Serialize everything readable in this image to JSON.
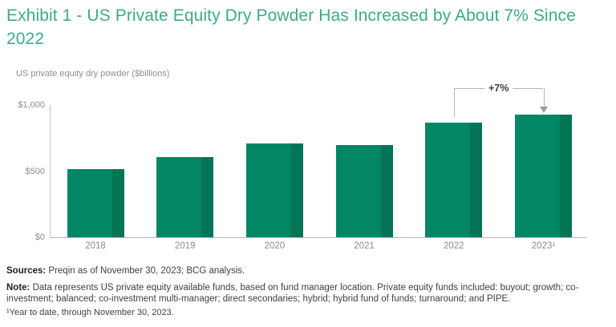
{
  "title": "Exhibit 1 - US Private Equity Dry Powder Has Increased by About 7% Since 2022",
  "subtitle": "US private equity dry powder ($billions)",
  "colors": {
    "title_green": "#3BAA8E",
    "bar_green": "#028663",
    "bar_shade_green": "#047457",
    "axis_gray": "#b8b8b8",
    "label_gray": "#8c8c8c"
  },
  "chart_data": {
    "type": "bar",
    "categories": [
      "2018",
      "2019",
      "2020",
      "2021",
      "2022",
      "2023¹"
    ],
    "values": [
      515,
      605,
      710,
      700,
      865,
      925
    ],
    "title": "Exhibit 1 - US Private Equity Dry Powder Has Increased by About 7% Since 2022",
    "xlabel": "",
    "ylabel": "US private equity dry powder ($billions)",
    "ylim": [
      0,
      1000
    ],
    "yticks": [
      {
        "label": "$0",
        "value": 0
      },
      {
        "label": "$500",
        "value": 500
      },
      {
        "label": "$1,000",
        "value": 1000
      }
    ],
    "grid": false,
    "legend": "none",
    "annotation": {
      "label": "+7%",
      "from_category": "2022",
      "to_category": "2023¹",
      "from_index": 4,
      "to_index": 5
    }
  },
  "footer": {
    "sources_label": "Sources:",
    "sources_text": " Preqin as of November 30, 2023; BCG analysis.",
    "note_label": "Note:",
    "note_text": " Data represents US private equity available funds, based on fund manager location. Private equity funds included: buyout; growth; co-investment; balanced; co-investment multi-manager; direct secondaries; hybrid; hybrid fund of funds; turnaround; and PIPE.",
    "footnote": "¹Year to date, through November 30, 2023."
  }
}
